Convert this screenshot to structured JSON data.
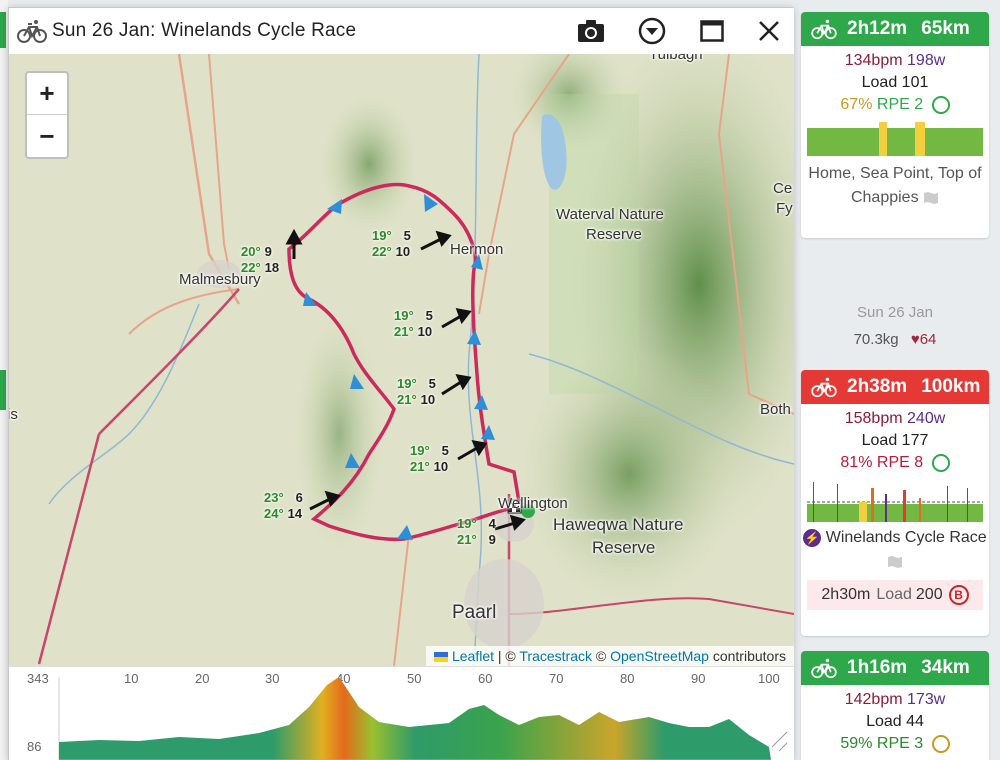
{
  "dialog": {
    "title": "Sun 26 Jan: Winelands Cycle Race",
    "bike_icon": "bike-icon",
    "buttons": [
      "camera-icon",
      "chevron-down-circle-icon",
      "maximize-icon",
      "close-icon"
    ]
  },
  "map": {
    "zoom_in": "+",
    "zoom_out": "−",
    "place_labels": {
      "tulbagh": "Tulbagh",
      "waterval": "Waterval Nature",
      "waterval2": "Reserve",
      "hermon": "Hermon",
      "malmesbury": "Malmesbury",
      "ceres": "Ce",
      "ceres2": "Fy",
      "both": "Both",
      "wellington": "Wellington",
      "haweqwa": "Haweqwa Nature",
      "haweqwa2": "Reserve",
      "paarl": "Paarl",
      "is": "is"
    },
    "weather": [
      {
        "t1": "20°",
        "w1": "9",
        "t2": "22°",
        "w2": "18"
      },
      {
        "t1": "19°",
        "w1": "5",
        "t2": "22°",
        "w2": "10"
      },
      {
        "t1": "19°",
        "w1": "5",
        "t2": "21°",
        "w2": "10"
      },
      {
        "t1": "19°",
        "w1": "5",
        "t2": "21°",
        "w2": "10"
      },
      {
        "t1": "19°",
        "w1": "5",
        "t2": "21°",
        "w2": "10"
      },
      {
        "t1": "23°",
        "w1": "6",
        "t2": "24°",
        "w2": "14"
      },
      {
        "t1": "19°",
        "w1": "4",
        "t2": "21°",
        "w2": "9"
      }
    ],
    "attribution": {
      "leaflet": "Leaflet",
      "sep1": " | © ",
      "tracestrack": "Tracestrack",
      "sep2": " © ",
      "osm": "OpenStreetMap",
      "tail": " contributors"
    }
  },
  "elevation": {
    "ymax": "343",
    "ymin": "86",
    "ticks": [
      "10",
      "20",
      "30",
      "40",
      "50",
      "60",
      "70",
      "80",
      "90",
      "100"
    ]
  },
  "sidebar": {
    "card1": {
      "duration": "2h12m",
      "distance": "65km",
      "bpm": "134bpm",
      "watts": "198w",
      "load": "Load 101",
      "pct": "67%",
      "rpe": "RPE 2",
      "desc": "Home, Sea Point, Top of Chappies",
      "color": "#2ea84a"
    },
    "day": {
      "date": "Sun 26 Jan",
      "weight": "70.3kg",
      "hr": "64"
    },
    "card2": {
      "duration": "2h38m",
      "distance": "100km",
      "bpm": "158bpm",
      "watts": "240w",
      "load": "Load 177",
      "pct": "81%",
      "rpe": "RPE 8",
      "desc": "Winelands Cycle Race",
      "plan_dur": "2h30m",
      "plan_load_lbl": "Load",
      "plan_load": "200",
      "plan_badge": "B",
      "color": "#e53935"
    },
    "card3": {
      "duration": "1h16m",
      "distance": "34km",
      "bpm": "142bpm",
      "watts": "173w",
      "load": "Load 44",
      "pct": "59%",
      "rpe": "RPE 3",
      "color": "#2ea84a"
    }
  }
}
